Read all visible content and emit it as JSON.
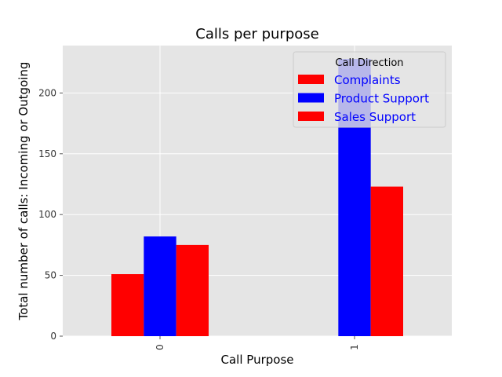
{
  "chart_data": {
    "type": "bar",
    "title": "Calls per purpose",
    "xlabel": "Call Purpose",
    "ylabel": "Total number of calls: Incoming or Outgoing",
    "categories": [
      "0",
      "1"
    ],
    "series": [
      {
        "name": "Complaints",
        "color": "#ff0000",
        "values": [
          51,
          0
        ]
      },
      {
        "name": "Product Support",
        "color": "#0000ff",
        "values": [
          82,
          228
        ]
      },
      {
        "name": "Sales Support",
        "color": "#ff0000",
        "values": [
          75,
          123
        ]
      }
    ],
    "ylim": [
      0,
      239
    ],
    "yticks": [
      0,
      50,
      100,
      150,
      200
    ],
    "grid": true,
    "legend": {
      "title": "Call Direction",
      "placement": "top-right"
    },
    "colors": {
      "plot_background": "#e5e5e5",
      "grid": "#ffffff",
      "legend_text": "#0000ff"
    }
  }
}
